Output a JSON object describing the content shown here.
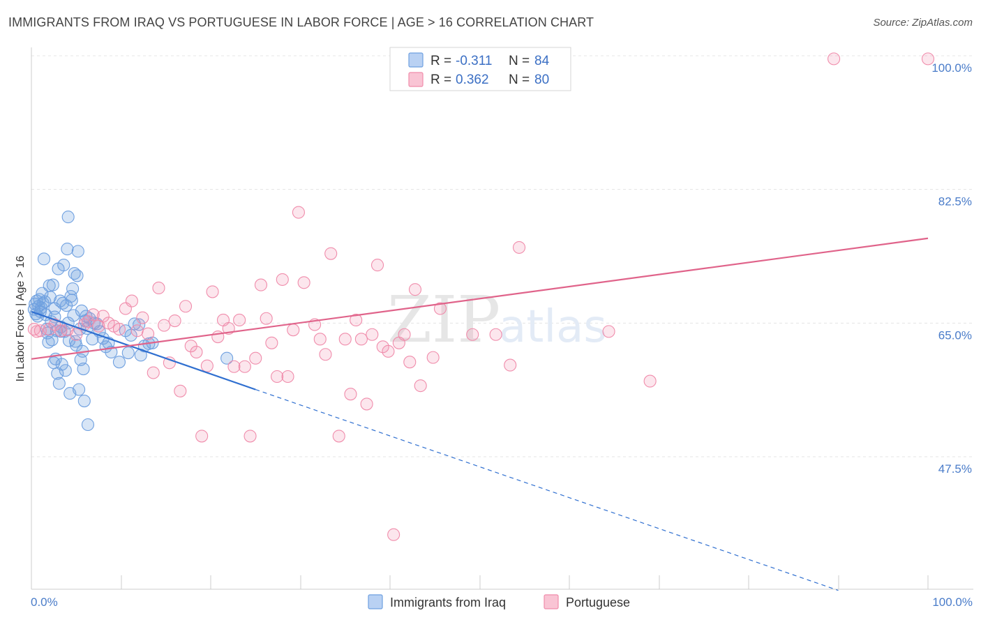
{
  "title": "IMMIGRANTS FROM IRAQ VS PORTUGUESE IN LABOR FORCE | AGE > 16 CORRELATION CHART",
  "source": "Source: ZipAtlas.com",
  "watermark": {
    "zip": "ZIP",
    "atlas": "atlas"
  },
  "chart_data": {
    "type": "scatter",
    "ylabel": "In Labor Force | Age > 16",
    "xlabel": "",
    "xlim": [
      0,
      100
    ],
    "ylim": [
      30,
      101
    ],
    "x_tick_labels": {
      "left": "0.0%",
      "right": "100.0%"
    },
    "y_ticks": [
      {
        "value": 100,
        "label": "100.0%"
      },
      {
        "value": 82.5,
        "label": "82.5%"
      },
      {
        "value": 65,
        "label": "65.0%"
      },
      {
        "value": 47.5,
        "label": "47.5%"
      }
    ],
    "grid": true,
    "legend": {
      "placement": "top-center",
      "entries": [
        {
          "r_label": "R =",
          "r_value": "-0.311",
          "n_label": "N =",
          "n_value": "84"
        },
        {
          "r_label": "R =",
          "r_value": "0.362",
          "n_label": "N =",
          "n_value": "80"
        }
      ]
    },
    "series": [
      {
        "name": "Immigrants from Iraq",
        "color": "#6fa0e0",
        "line_color": "#2f6fd0",
        "trend": {
          "x0": 0,
          "y0": 66.5,
          "x1": 25,
          "y1": 56.3,
          "dash_to_x": 90,
          "dash_to_y": 30
        },
        "points": [
          [
            0.3,
            66.8
          ],
          [
            0.4,
            67.5
          ],
          [
            0.5,
            66.2
          ],
          [
            0.6,
            67.9
          ],
          [
            0.7,
            65.9
          ],
          [
            0.8,
            67.2
          ],
          [
            0.9,
            68.1
          ],
          [
            1.0,
            66.5
          ],
          [
            1.1,
            67.0
          ],
          [
            1.2,
            68.9
          ],
          [
            1.3,
            67.6
          ],
          [
            1.4,
            73.4
          ],
          [
            1.5,
            67.8
          ],
          [
            1.6,
            66.1
          ],
          [
            1.7,
            64.2
          ],
          [
            1.8,
            63.7
          ],
          [
            1.9,
            62.5
          ],
          [
            2.0,
            69.9
          ],
          [
            2.1,
            68.4
          ],
          [
            2.2,
            65.2
          ],
          [
            2.3,
            62.8
          ],
          [
            2.4,
            70.0
          ],
          [
            2.5,
            59.8
          ],
          [
            2.6,
            66.9
          ],
          [
            2.7,
            60.3
          ],
          [
            2.8,
            64.0
          ],
          [
            2.9,
            58.4
          ],
          [
            3.0,
            72.1
          ],
          [
            3.1,
            57.1
          ],
          [
            3.2,
            67.9
          ],
          [
            3.3,
            64.5
          ],
          [
            3.4,
            59.6
          ],
          [
            3.5,
            67.6
          ],
          [
            3.6,
            72.6
          ],
          [
            3.7,
            63.9
          ],
          [
            3.8,
            58.8
          ],
          [
            3.9,
            67.3
          ],
          [
            4.0,
            74.7
          ],
          [
            4.1,
            78.9
          ],
          [
            4.2,
            62.7
          ],
          [
            4.3,
            55.8
          ],
          [
            4.4,
            68.5
          ],
          [
            4.5,
            68.0
          ],
          [
            4.6,
            69.5
          ],
          [
            4.7,
            66.0
          ],
          [
            4.8,
            71.5
          ],
          [
            4.9,
            62.6
          ],
          [
            5.0,
            62.1
          ],
          [
            5.1,
            71.2
          ],
          [
            5.2,
            74.4
          ],
          [
            5.3,
            56.3
          ],
          [
            5.4,
            64.2
          ],
          [
            5.5,
            60.2
          ],
          [
            5.6,
            66.6
          ],
          [
            5.7,
            61.3
          ],
          [
            5.8,
            59.0
          ],
          [
            5.9,
            54.8
          ],
          [
            6.0,
            65.3
          ],
          [
            6.1,
            65.9
          ],
          [
            6.2,
            64.3
          ],
          [
            6.3,
            51.7
          ],
          [
            6.5,
            65.6
          ],
          [
            6.8,
            62.9
          ],
          [
            7.0,
            65.0
          ],
          [
            7.3,
            64.9
          ],
          [
            7.6,
            63.9
          ],
          [
            8.0,
            63.0
          ],
          [
            8.3,
            61.9
          ],
          [
            8.6,
            62.4
          ],
          [
            8.9,
            61.2
          ],
          [
            9.8,
            59.9
          ],
          [
            10.5,
            64.0
          ],
          [
            10.8,
            61.1
          ],
          [
            11.1,
            63.4
          ],
          [
            11.5,
            64.9
          ],
          [
            12.2,
            60.8
          ],
          [
            12.6,
            62.0
          ],
          [
            13.1,
            62.3
          ],
          [
            13.5,
            62.4
          ],
          [
            12.0,
            64.8
          ],
          [
            2.6,
            65.8
          ],
          [
            3.3,
            63.9
          ],
          [
            21.8,
            60.4
          ],
          [
            4.1,
            65.0
          ]
        ]
      },
      {
        "name": "Portuguese",
        "color": "#f08cab",
        "line_color": "#e0638a",
        "trend": {
          "x0": 0,
          "y0": 60.3,
          "x1": 100,
          "y1": 76.1
        },
        "points": [
          [
            0.3,
            64.2
          ],
          [
            0.6,
            63.9
          ],
          [
            1.0,
            64.0
          ],
          [
            2.0,
            64.2
          ],
          [
            2.6,
            64.8
          ],
          [
            3.3,
            64.0
          ],
          [
            4.0,
            64.1
          ],
          [
            5.0,
            63.5
          ],
          [
            5.9,
            64.8
          ],
          [
            6.3,
            65.2
          ],
          [
            6.9,
            66.1
          ],
          [
            7.5,
            64.6
          ],
          [
            8.0,
            65.9
          ],
          [
            8.6,
            65.0
          ],
          [
            9.2,
            64.6
          ],
          [
            9.8,
            64.2
          ],
          [
            10.5,
            66.9
          ],
          [
            11.2,
            67.9
          ],
          [
            11.8,
            64.0
          ],
          [
            12.4,
            65.7
          ],
          [
            13.0,
            63.6
          ],
          [
            13.6,
            58.5
          ],
          [
            14.2,
            69.6
          ],
          [
            14.8,
            64.7
          ],
          [
            15.4,
            59.8
          ],
          [
            16.0,
            65.3
          ],
          [
            16.6,
            56.1
          ],
          [
            17.2,
            67.2
          ],
          [
            17.8,
            62.0
          ],
          [
            18.4,
            61.2
          ],
          [
            19.0,
            50.2
          ],
          [
            19.6,
            59.4
          ],
          [
            20.2,
            69.1
          ],
          [
            20.8,
            63.2
          ],
          [
            21.4,
            65.4
          ],
          [
            22.0,
            64.3
          ],
          [
            22.6,
            59.3
          ],
          [
            23.2,
            65.4
          ],
          [
            23.8,
            59.3
          ],
          [
            24.4,
            50.2
          ],
          [
            25.0,
            60.4
          ],
          [
            25.6,
            70.0
          ],
          [
            26.2,
            65.6
          ],
          [
            26.8,
            62.4
          ],
          [
            27.4,
            58.0
          ],
          [
            28.0,
            70.7
          ],
          [
            28.6,
            58.0
          ],
          [
            29.2,
            64.1
          ],
          [
            29.8,
            79.5
          ],
          [
            30.4,
            70.3
          ],
          [
            31.6,
            64.8
          ],
          [
            32.2,
            62.9
          ],
          [
            32.8,
            60.9
          ],
          [
            33.4,
            74.1
          ],
          [
            34.3,
            50.2
          ],
          [
            35.0,
            62.9
          ],
          [
            35.6,
            55.7
          ],
          [
            36.2,
            65.4
          ],
          [
            36.8,
            62.9
          ],
          [
            37.4,
            54.4
          ],
          [
            38.0,
            63.5
          ],
          [
            38.6,
            72.6
          ],
          [
            39.2,
            61.9
          ],
          [
            39.8,
            61.3
          ],
          [
            40.4,
            37.3
          ],
          [
            41.0,
            62.4
          ],
          [
            41.6,
            63.5
          ],
          [
            42.2,
            59.9
          ],
          [
            42.8,
            69.4
          ],
          [
            43.4,
            56.8
          ],
          [
            44.8,
            60.5
          ],
          [
            45.6,
            66.9
          ],
          [
            49.2,
            63.5
          ],
          [
            51.8,
            63.5
          ],
          [
            53.4,
            59.5
          ],
          [
            54.4,
            74.9
          ],
          [
            64.4,
            63.9
          ],
          [
            69.0,
            57.4
          ],
          [
            89.5,
            99.6
          ],
          [
            100.0,
            99.6
          ]
        ]
      }
    ]
  }
}
